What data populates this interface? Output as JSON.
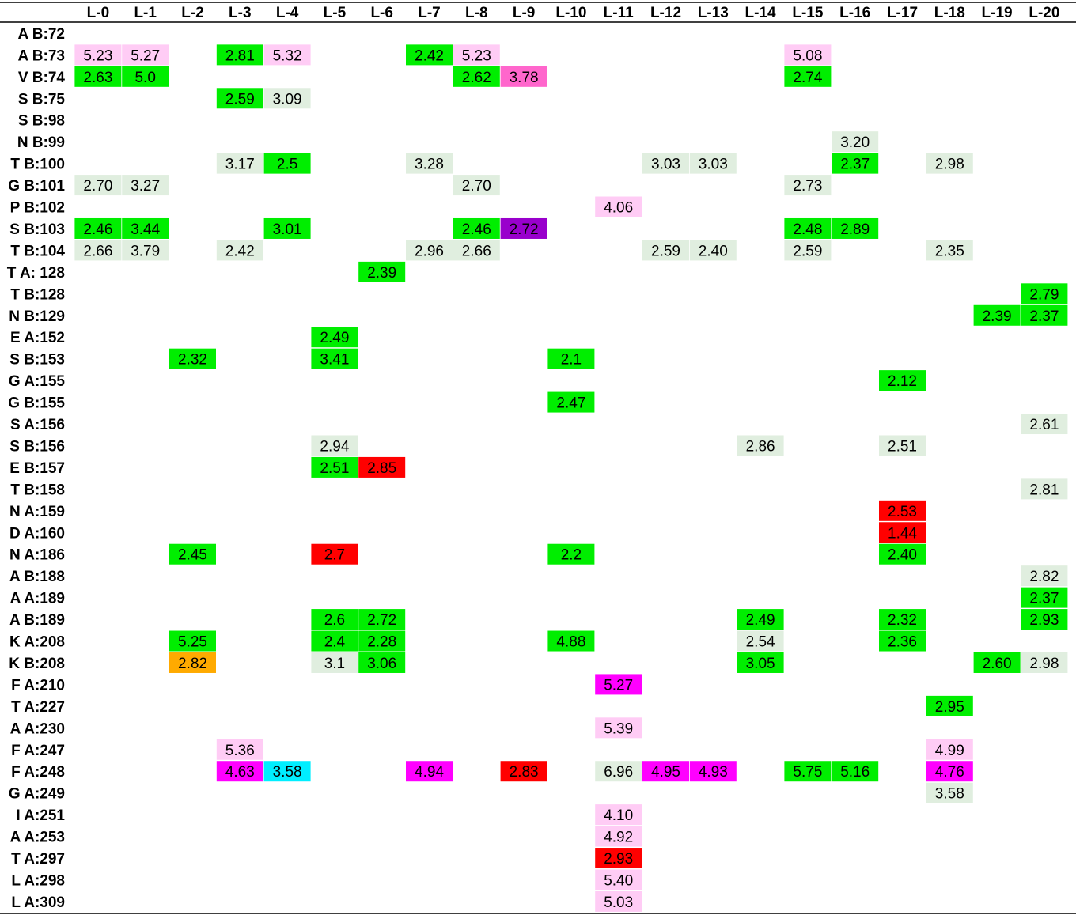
{
  "chart_data": {
    "type": "heatmap",
    "title": "",
    "columns": [
      "L-0",
      "L-1",
      "L-2",
      "L-3",
      "L-4",
      "L-5",
      "L-6",
      "L-7",
      "L-8",
      "L-9",
      "L-10",
      "L-11",
      "L-12",
      "L-13",
      "L-14",
      "L-15",
      "L-16",
      "L-17",
      "L-18",
      "L-19",
      "L-20"
    ],
    "rows": [
      "A B:72",
      "A B:73",
      "V B:74",
      "S B:75",
      "S B:98",
      "N B:99",
      "T B:100",
      "G B:101",
      "P B:102",
      "S B:103",
      "T B:104",
      "T A: 128",
      "T B:128",
      "N B:129",
      "E A:152",
      "S B:153",
      "G A:155",
      "G B:155",
      "S A:156",
      "S B:156",
      "E B:157",
      "T B:158",
      "N A:159",
      "D A:160",
      "N A:186",
      "A B:188",
      "A A:189",
      "A B:189",
      "K A:208",
      "K B:208",
      "F A:210",
      "T A:227",
      "A A:230",
      "F A:247",
      "F A:248",
      "G A:249",
      "I A:251",
      "A A:253",
      "T A:297",
      "L A:298",
      "L A:309"
    ],
    "legend": {
      "green": "#00ee00",
      "pale-green": "#e0eedf",
      "pink": "#ffccf5",
      "magenta": "#ff00ff",
      "hot-pink": "#ff66cc",
      "purple": "#9900cc",
      "red": "#ff0000",
      "orange": "#ffaa00",
      "cyan": "#00eeff"
    },
    "cells": [
      {
        "row": "A B:73",
        "col": "L-0",
        "value": "5.23",
        "color": "pink"
      },
      {
        "row": "A B:73",
        "col": "L-1",
        "value": "5.27",
        "color": "pink"
      },
      {
        "row": "A B:73",
        "col": "L-3",
        "value": "2.81",
        "color": "green"
      },
      {
        "row": "A B:73",
        "col": "L-4",
        "value": "5.32",
        "color": "pink"
      },
      {
        "row": "A B:73",
        "col": "L-7",
        "value": "2.42",
        "color": "green"
      },
      {
        "row": "A B:73",
        "col": "L-8",
        "value": "5.23",
        "color": "pink"
      },
      {
        "row": "A B:73",
        "col": "L-15",
        "value": "5.08",
        "color": "pink"
      },
      {
        "row": "V B:74",
        "col": "L-0",
        "value": "2.63",
        "color": "green"
      },
      {
        "row": "V B:74",
        "col": "L-1",
        "value": "5.0",
        "color": "green"
      },
      {
        "row": "V B:74",
        "col": "L-8",
        "value": "2.62",
        "color": "green"
      },
      {
        "row": "V B:74",
        "col": "L-9",
        "value": "3.78",
        "color": "hot-pink"
      },
      {
        "row": "V B:74",
        "col": "L-15",
        "value": "2.74",
        "color": "green"
      },
      {
        "row": "S B:75",
        "col": "L-3",
        "value": "2.59",
        "color": "green"
      },
      {
        "row": "S B:75",
        "col": "L-4",
        "value": "3.09",
        "color": "pale-green"
      },
      {
        "row": "N B:99",
        "col": "L-16",
        "value": "3.20",
        "color": "pale-green"
      },
      {
        "row": "T B:100",
        "col": "L-3",
        "value": "3.17",
        "color": "pale-green"
      },
      {
        "row": "T B:100",
        "col": "L-4",
        "value": "2.5",
        "color": "green"
      },
      {
        "row": "T B:100",
        "col": "L-7",
        "value": "3.28",
        "color": "pale-green"
      },
      {
        "row": "T B:100",
        "col": "L-12",
        "value": "3.03",
        "color": "pale-green"
      },
      {
        "row": "T B:100",
        "col": "L-13",
        "value": "3.03",
        "color": "pale-green"
      },
      {
        "row": "T B:100",
        "col": "L-16",
        "value": "2.37",
        "color": "green"
      },
      {
        "row": "T B:100",
        "col": "L-18",
        "value": "2.98",
        "color": "pale-green"
      },
      {
        "row": "G B:101",
        "col": "L-0",
        "value": "2.70",
        "color": "pale-green"
      },
      {
        "row": "G B:101",
        "col": "L-1",
        "value": "3.27",
        "color": "pale-green"
      },
      {
        "row": "G B:101",
        "col": "L-8",
        "value": "2.70",
        "color": "pale-green"
      },
      {
        "row": "G B:101",
        "col": "L-15",
        "value": "2.73",
        "color": "pale-green"
      },
      {
        "row": "P B:102",
        "col": "L-11",
        "value": "4.06",
        "color": "pink"
      },
      {
        "row": "S B:103",
        "col": "L-0",
        "value": "2.46",
        "color": "green"
      },
      {
        "row": "S B:103",
        "col": "L-1",
        "value": "3.44",
        "color": "green"
      },
      {
        "row": "S B:103",
        "col": "L-4",
        "value": "3.01",
        "color": "green"
      },
      {
        "row": "S B:103",
        "col": "L-8",
        "value": "2.46",
        "color": "green"
      },
      {
        "row": "S B:103",
        "col": "L-9",
        "value": "2.72",
        "color": "purple"
      },
      {
        "row": "S B:103",
        "col": "L-15",
        "value": "2.48",
        "color": "green"
      },
      {
        "row": "S B:103",
        "col": "L-16",
        "value": "2.89",
        "color": "green"
      },
      {
        "row": "T B:104",
        "col": "L-0",
        "value": "2.66",
        "color": "pale-green"
      },
      {
        "row": "T B:104",
        "col": "L-1",
        "value": "3.79",
        "color": "pale-green"
      },
      {
        "row": "T B:104",
        "col": "L-3",
        "value": "2.42",
        "color": "pale-green"
      },
      {
        "row": "T B:104",
        "col": "L-7",
        "value": "2.96",
        "color": "pale-green"
      },
      {
        "row": "T B:104",
        "col": "L-8",
        "value": "2.66",
        "color": "pale-green"
      },
      {
        "row": "T B:104",
        "col": "L-12",
        "value": "2.59",
        "color": "pale-green"
      },
      {
        "row": "T B:104",
        "col": "L-13",
        "value": "2.40",
        "color": "pale-green"
      },
      {
        "row": "T B:104",
        "col": "L-15",
        "value": "2.59",
        "color": "pale-green"
      },
      {
        "row": "T B:104",
        "col": "L-18",
        "value": "2.35",
        "color": "pale-green"
      },
      {
        "row": "T A: 128",
        "col": "L-6",
        "value": "2.39",
        "color": "green"
      },
      {
        "row": "T B:128",
        "col": "L-20",
        "value": "2.79",
        "color": "green"
      },
      {
        "row": "N B:129",
        "col": "L-19",
        "value": "2.39",
        "color": "green"
      },
      {
        "row": "N B:129",
        "col": "L-20",
        "value": "2.37",
        "color": "green"
      },
      {
        "row": "E A:152",
        "col": "L-5",
        "value": "2.49",
        "color": "green"
      },
      {
        "row": "S B:153",
        "col": "L-2",
        "value": "2.32",
        "color": "green"
      },
      {
        "row": "S B:153",
        "col": "L-5",
        "value": "3.41",
        "color": "green"
      },
      {
        "row": "S B:153",
        "col": "L-10",
        "value": "2.1",
        "color": "green"
      },
      {
        "row": "G A:155",
        "col": "L-17",
        "value": "2.12",
        "color": "green"
      },
      {
        "row": "G B:155",
        "col": "L-10",
        "value": "2.47",
        "color": "green"
      },
      {
        "row": "S A:156",
        "col": "L-20",
        "value": "2.61",
        "color": "pale-green"
      },
      {
        "row": "S B:156",
        "col": "L-5",
        "value": "2.94",
        "color": "pale-green"
      },
      {
        "row": "S B:156",
        "col": "L-14",
        "value": "2.86",
        "color": "pale-green"
      },
      {
        "row": "S B:156",
        "col": "L-17",
        "value": "2.51",
        "color": "pale-green"
      },
      {
        "row": "E B:157",
        "col": "L-5",
        "value": "2.51",
        "color": "green"
      },
      {
        "row": "E B:157",
        "col": "L-6",
        "value": "2.85",
        "color": "red"
      },
      {
        "row": "T B:158",
        "col": "L-20",
        "value": "2.81",
        "color": "pale-green"
      },
      {
        "row": "N A:159",
        "col": "L-17",
        "value": "2.53",
        "color": "red"
      },
      {
        "row": "D A:160",
        "col": "L-17",
        "value": "1.44",
        "color": "red"
      },
      {
        "row": "N A:186",
        "col": "L-2",
        "value": "2.45",
        "color": "green"
      },
      {
        "row": "N A:186",
        "col": "L-5",
        "value": "2.7",
        "color": "red"
      },
      {
        "row": "N A:186",
        "col": "L-10",
        "value": "2.2",
        "color": "green"
      },
      {
        "row": "N A:186",
        "col": "L-17",
        "value": "2.40",
        "color": "green"
      },
      {
        "row": "A B:188",
        "col": "L-20",
        "value": "2.82",
        "color": "pale-green"
      },
      {
        "row": "A A:189",
        "col": "L-20",
        "value": "2.37",
        "color": "green"
      },
      {
        "row": "A B:189",
        "col": "L-5",
        "value": "2.6",
        "color": "green"
      },
      {
        "row": "A B:189",
        "col": "L-6",
        "value": "2.72",
        "color": "green"
      },
      {
        "row": "A B:189",
        "col": "L-14",
        "value": "2.49",
        "color": "green"
      },
      {
        "row": "A B:189",
        "col": "L-17",
        "value": "2.32",
        "color": "green"
      },
      {
        "row": "A B:189",
        "col": "L-20",
        "value": "2.93",
        "color": "green"
      },
      {
        "row": "K A:208",
        "col": "L-2",
        "value": "5.25",
        "color": "green"
      },
      {
        "row": "K A:208",
        "col": "L-5",
        "value": "2.4",
        "color": "green"
      },
      {
        "row": "K A:208",
        "col": "L-6",
        "value": "2.28",
        "color": "green"
      },
      {
        "row": "K A:208",
        "col": "L-10",
        "value": "4.88",
        "color": "green"
      },
      {
        "row": "K A:208",
        "col": "L-14",
        "value": "2.54",
        "color": "pale-green"
      },
      {
        "row": "K A:208",
        "col": "L-17",
        "value": "2.36",
        "color": "green"
      },
      {
        "row": "K B:208",
        "col": "L-2",
        "value": "2.82",
        "color": "orange"
      },
      {
        "row": "K B:208",
        "col": "L-5",
        "value": "3.1",
        "color": "pale-green"
      },
      {
        "row": "K B:208",
        "col": "L-6",
        "value": "3.06",
        "color": "green"
      },
      {
        "row": "K B:208",
        "col": "L-14",
        "value": "3.05",
        "color": "green"
      },
      {
        "row": "K B:208",
        "col": "L-19",
        "value": "2.60",
        "color": "green"
      },
      {
        "row": "K B:208",
        "col": "L-20",
        "value": "2.98",
        "color": "pale-green"
      },
      {
        "row": "F A:210",
        "col": "L-11",
        "value": "5.27",
        "color": "magenta"
      },
      {
        "row": "T A:227",
        "col": "L-18",
        "value": "2.95",
        "color": "green"
      },
      {
        "row": "A A:230",
        "col": "L-11",
        "value": "5.39",
        "color": "pink"
      },
      {
        "row": "F A:247",
        "col": "L-3",
        "value": "5.36",
        "color": "pink"
      },
      {
        "row": "F A:247",
        "col": "L-18",
        "value": "4.99",
        "color": "pink"
      },
      {
        "row": "F A:248",
        "col": "L-3",
        "value": "4.63",
        "color": "magenta"
      },
      {
        "row": "F A:248",
        "col": "L-4",
        "value": "3.58",
        "color": "cyan"
      },
      {
        "row": "F A:248",
        "col": "L-7",
        "value": "4.94",
        "color": "magenta"
      },
      {
        "row": "F A:248",
        "col": "L-9",
        "value": "2.83",
        "color": "red"
      },
      {
        "row": "F A:248",
        "col": "L-11",
        "value": "6.96",
        "color": "pale-green"
      },
      {
        "row": "F A:248",
        "col": "L-12",
        "value": "4.95",
        "color": "magenta"
      },
      {
        "row": "F A:248",
        "col": "L-13",
        "value": "4.93",
        "color": "magenta"
      },
      {
        "row": "F A:248",
        "col": "L-15",
        "value": "5.75",
        "color": "green"
      },
      {
        "row": "F A:248",
        "col": "L-16",
        "value": "5.16",
        "color": "green"
      },
      {
        "row": "F A:248",
        "col": "L-18",
        "value": "4.76",
        "color": "magenta"
      },
      {
        "row": "G A:249",
        "col": "L-18",
        "value": "3.58",
        "color": "pale-green"
      },
      {
        "row": "I A:251",
        "col": "L-11",
        "value": "4.10",
        "color": "pink"
      },
      {
        "row": "A A:253",
        "col": "L-11",
        "value": "4.92",
        "color": "pink"
      },
      {
        "row": "T A:297",
        "col": "L-11",
        "value": "2.93",
        "color": "red"
      },
      {
        "row": "L A:298",
        "col": "L-11",
        "value": "5.40",
        "color": "pink"
      },
      {
        "row": "L A:309",
        "col": "L-11",
        "value": "5.03",
        "color": "pink"
      }
    ]
  }
}
